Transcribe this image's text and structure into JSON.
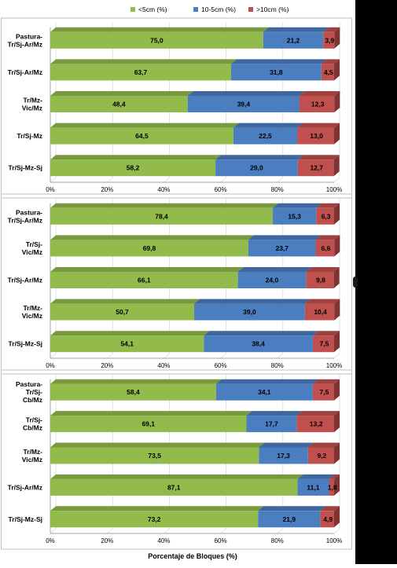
{
  "chart_data": {
    "type": "bar",
    "orientation": "horizontal",
    "stacked": true,
    "legend_position": "top",
    "legend": [
      {
        "name": "<5cm (%)",
        "color": "#92BB4B"
      },
      {
        "name": "10-5cm (%)",
        "color": "#4A7EC0"
      },
      {
        "name": ">10cm (%)",
        "color": "#C0504D"
      }
    ],
    "xlabel": "Porcentaje de Bloques (%)",
    "xlim": [
      0,
      100
    ],
    "xticks": [
      "0%",
      "20%",
      "40%",
      "60%",
      "80%",
      "100%"
    ],
    "panels": [
      {
        "categories": [
          [
            "Pastura-",
            "Tr/Sj-Ar/Mz"
          ],
          [
            "Tr/Sj-Ar/Mz"
          ],
          [
            "Tr/Mz-",
            "Vic/Mz"
          ],
          [
            "Tr/Sj-Mz"
          ],
          [
            "Tr/Sj-Mz-Sj"
          ]
        ],
        "series": [
          {
            "name": "<5cm (%)",
            "values": [
              75.0,
              63.7,
              48.4,
              64.5,
              58.2
            ],
            "labels": [
              "75,0",
              "63,7",
              "48,4",
              "64,5",
              "58,2"
            ]
          },
          {
            "name": "10-5cm (%)",
            "values": [
              21.2,
              31.8,
              39.4,
              22.5,
              29.0
            ],
            "labels": [
              "21,2",
              "31,8",
              "39,4",
              "22,5",
              "29,0"
            ]
          },
          {
            "name": ">10cm (%)",
            "values": [
              3.9,
              4.5,
              12.3,
              13.0,
              12.7
            ],
            "labels": [
              "3,9",
              "4,5",
              "12,3",
              "13,0",
              "12,7"
            ]
          }
        ]
      },
      {
        "categories": [
          [
            "Pastura-",
            "Tr/Sj-Ar/Mz"
          ],
          [
            "Tr/Sj-",
            "Vic/Mz"
          ],
          [
            "Tr/Sj-Ar/Mz"
          ],
          [
            "Tr/Mz-",
            "Vic/Mz"
          ],
          [
            "Tr/Sj-Mz-Sj"
          ]
        ],
        "series": [
          {
            "name": "<5cm (%)",
            "values": [
              78.4,
              69.8,
              66.1,
              50.7,
              54.1
            ],
            "labels": [
              "78,4",
              "69,8",
              "66,1",
              "50,7",
              "54,1"
            ]
          },
          {
            "name": "10-5cm (%)",
            "values": [
              15.3,
              23.7,
              24.0,
              39.0,
              38.4
            ],
            "labels": [
              "15,3",
              "23,7",
              "24,0",
              "39,0",
              "38,4"
            ]
          },
          {
            "name": ">10cm (%)",
            "values": [
              6.3,
              6.6,
              9.8,
              10.4,
              7.5
            ],
            "labels": [
              "6,3",
              "6,6",
              "9,8",
              "10,4",
              "7,5"
            ]
          }
        ]
      },
      {
        "categories": [
          [
            "Pastura-",
            "Tr/Sj-",
            "Cb/Mz"
          ],
          [
            "Tr/Sj-",
            "Cb/Mz"
          ],
          [
            "Tr/Mz-",
            "Vic/Mz"
          ],
          [
            "Tr/Sj-Ar/Mz"
          ],
          [
            "Tr/Sj-Mz-Sj"
          ]
        ],
        "series": [
          {
            "name": "<5cm (%)",
            "values": [
              58.4,
              69.1,
              73.5,
              87.1,
              73.2
            ],
            "labels": [
              "58,4",
              "69,1",
              "73,5",
              "87,1",
              "73,2"
            ]
          },
          {
            "name": "10-5cm (%)",
            "values": [
              34.1,
              17.7,
              17.3,
              11.1,
              21.9
            ],
            "labels": [
              "34,1",
              "17,7",
              "17,3",
              "11,1",
              "21,9"
            ]
          },
          {
            "name": ">10cm (%)",
            "values": [
              7.5,
              13.2,
              9.2,
              1.8,
              4.9
            ],
            "labels": [
              "7,5",
              "13,2",
              "9,2",
              "1,8",
              "4,9"
            ]
          }
        ]
      }
    ]
  }
}
